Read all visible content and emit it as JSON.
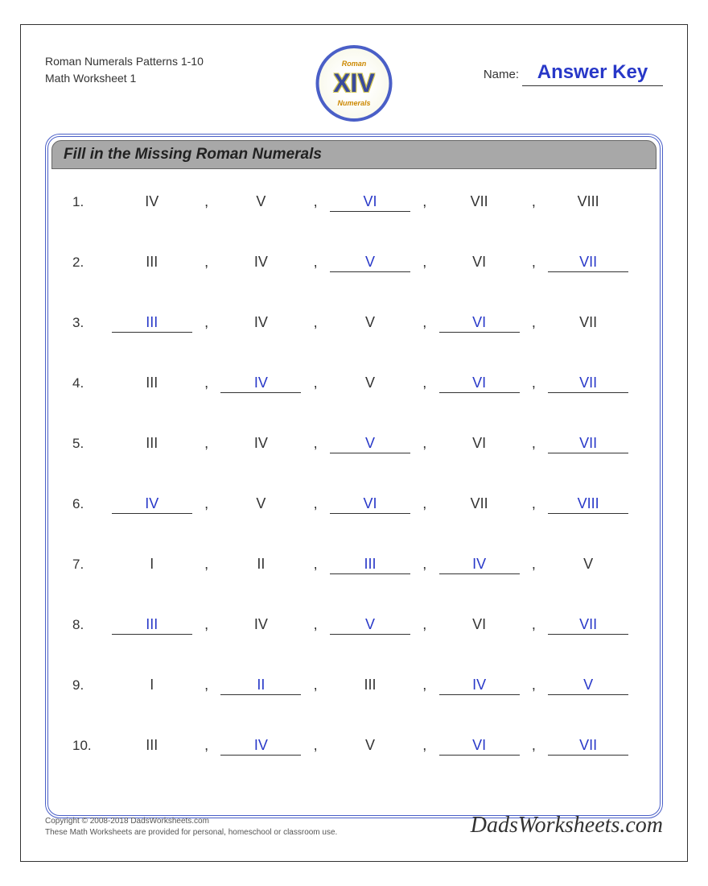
{
  "header": {
    "title_line1": "Roman Numerals Patterns 1-10",
    "title_line2": "Math Worksheet 1",
    "name_label": "Name:",
    "name_value": "Answer Key"
  },
  "logo": {
    "main": "XIV",
    "top": "Roman",
    "bottom": "Numerals"
  },
  "box_title": "Fill in the Missing Roman Numerals",
  "answer_color": "#2838c8",
  "border_color": "#4a5fc7",
  "problems": [
    {
      "num": "1.",
      "cells": [
        {
          "v": "IV",
          "a": false
        },
        {
          "v": "V",
          "a": false
        },
        {
          "v": "VI",
          "a": true
        },
        {
          "v": "VII",
          "a": false
        },
        {
          "v": "VIII",
          "a": false
        }
      ]
    },
    {
      "num": "2.",
      "cells": [
        {
          "v": "III",
          "a": false
        },
        {
          "v": "IV",
          "a": false
        },
        {
          "v": "V",
          "a": true
        },
        {
          "v": "VI",
          "a": false
        },
        {
          "v": "VII",
          "a": true
        }
      ]
    },
    {
      "num": "3.",
      "cells": [
        {
          "v": "III",
          "a": true
        },
        {
          "v": "IV",
          "a": false
        },
        {
          "v": "V",
          "a": false
        },
        {
          "v": "VI",
          "a": true
        },
        {
          "v": "VII",
          "a": false
        }
      ]
    },
    {
      "num": "4.",
      "cells": [
        {
          "v": "III",
          "a": false
        },
        {
          "v": "IV",
          "a": true
        },
        {
          "v": "V",
          "a": false
        },
        {
          "v": "VI",
          "a": true
        },
        {
          "v": "VII",
          "a": true
        }
      ]
    },
    {
      "num": "5.",
      "cells": [
        {
          "v": "III",
          "a": false
        },
        {
          "v": "IV",
          "a": false
        },
        {
          "v": "V",
          "a": true
        },
        {
          "v": "VI",
          "a": false
        },
        {
          "v": "VII",
          "a": true
        }
      ]
    },
    {
      "num": "6.",
      "cells": [
        {
          "v": "IV",
          "a": true
        },
        {
          "v": "V",
          "a": false
        },
        {
          "v": "VI",
          "a": true
        },
        {
          "v": "VII",
          "a": false
        },
        {
          "v": "VIII",
          "a": true
        }
      ]
    },
    {
      "num": "7.",
      "cells": [
        {
          "v": "I",
          "a": false
        },
        {
          "v": "II",
          "a": false
        },
        {
          "v": "III",
          "a": true
        },
        {
          "v": "IV",
          "a": true
        },
        {
          "v": "V",
          "a": false
        }
      ]
    },
    {
      "num": "8.",
      "cells": [
        {
          "v": "III",
          "a": true
        },
        {
          "v": "IV",
          "a": false
        },
        {
          "v": "V",
          "a": true
        },
        {
          "v": "VI",
          "a": false
        },
        {
          "v": "VII",
          "a": true
        }
      ]
    },
    {
      "num": "9.",
      "cells": [
        {
          "v": "I",
          "a": false
        },
        {
          "v": "II",
          "a": true
        },
        {
          "v": "III",
          "a": false
        },
        {
          "v": "IV",
          "a": true
        },
        {
          "v": "V",
          "a": true
        }
      ]
    },
    {
      "num": "10.",
      "cells": [
        {
          "v": "III",
          "a": false
        },
        {
          "v": "IV",
          "a": true
        },
        {
          "v": "V",
          "a": false
        },
        {
          "v": "VI",
          "a": true
        },
        {
          "v": "VII",
          "a": true
        }
      ]
    }
  ],
  "footer": {
    "copyright": "Copyright © 2008-2018 DadsWorksheets.com",
    "note": "These Math Worksheets are provided for personal, homeschool or classroom use.",
    "site": "DadsWorksheets.com"
  }
}
